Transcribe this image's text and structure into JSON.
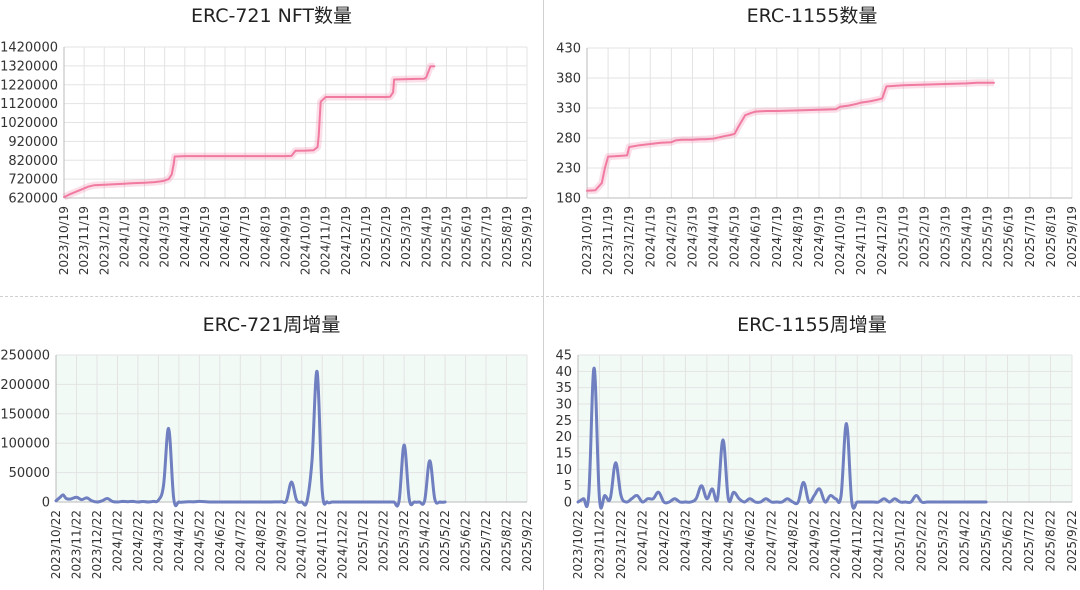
{
  "chart_data": [
    {
      "id": "c1",
      "type": "line",
      "title": "ERC-721 NFT数量",
      "y_ticks": [
        "1420000",
        "1320000",
        "1220000",
        "1120000",
        "1020000",
        "920000",
        "820000",
        "720000",
        "620000"
      ],
      "ylim": [
        620000,
        1420000
      ],
      "x_ticks": [
        "2023/10/19",
        "2023/11/19",
        "2023/12/19",
        "2024/1/19",
        "2024/2/19",
        "2024/3/19",
        "2024/4/19",
        "2024/5/19",
        "2024/6/19",
        "2024/7/19",
        "2024/8/19",
        "2024/9/19",
        "2024/10/19",
        "2024/11/19",
        "2024/12/19",
        "2025/1/19",
        "2025/2/19",
        "2025/3/19",
        "2025/4/19",
        "2025/5/19",
        "2025/6/19",
        "2025/7/19",
        "2025/8/19",
        "2025/9/19"
      ],
      "color": "#f07aa0",
      "area": false,
      "background": "#ffffff",
      "grid": true,
      "series": [
        {
          "x": [
            0,
            0.3,
            0.8,
            1.2,
            1.5,
            2.0,
            2.5,
            3.0,
            3.5,
            4.0,
            4.5,
            4.8,
            5.0,
            5.2,
            5.35,
            5.45,
            5.5,
            6,
            7,
            8,
            9,
            10,
            11,
            11.3,
            11.5,
            12.0,
            12.4,
            12.6,
            12.65,
            12.75,
            13,
            14,
            15,
            16,
            16.2,
            16.35,
            16.4,
            17,
            17.5,
            17.9,
            18.0,
            18.2,
            18.4
          ],
          "y": [
            625000,
            640000,
            662000,
            680000,
            688000,
            690000,
            693000,
            696000,
            699000,
            701000,
            704000,
            708000,
            712000,
            720000,
            745000,
            800000,
            840000,
            842000,
            842000,
            842000,
            842000,
            842000,
            842000,
            843000,
            870000,
            871000,
            873000,
            890000,
            950000,
            1130000,
            1155000,
            1155000,
            1155000,
            1155000,
            1156000,
            1180000,
            1248000,
            1250000,
            1251000,
            1252000,
            1260000,
            1317000,
            1318000
          ]
        }
      ]
    },
    {
      "id": "c2",
      "type": "line",
      "title": "ERC-1155数量",
      "y_ticks": [
        "430",
        "380",
        "330",
        "280",
        "230",
        "180"
      ],
      "ylim": [
        180,
        430
      ],
      "x_ticks": [
        "2023/10/19",
        "2023/11/19",
        "2023/12/19",
        "2024/1/19",
        "2024/2/19",
        "2024/3/19",
        "2024/4/19",
        "2024/5/19",
        "2024/6/19",
        "2024/7/19",
        "2024/8/19",
        "2024/9/19",
        "2024/10/19",
        "2024/11/19",
        "2024/12/19",
        "2025/1/19",
        "2025/2/19",
        "2025/3/19",
        "2025/4/19",
        "2025/5/19",
        "2025/6/19",
        "2025/7/19",
        "2025/8/19",
        "2025/9/19"
      ],
      "color": "#f07aa0",
      "area": false,
      "background": "#ffffff",
      "grid": true,
      "series": [
        {
          "x": [
            0,
            0.4,
            0.7,
            0.85,
            1.0,
            1.5,
            1.9,
            2.0,
            2.5,
            3.0,
            3.5,
            4.0,
            4.2,
            4.5,
            5,
            5.4,
            5.6,
            6.0,
            6.5,
            6.8,
            7.0,
            7.2,
            7.5,
            7.8,
            8.0,
            8.5,
            9,
            10,
            11,
            11.8,
            12.0,
            12.4,
            12.8,
            13,
            13.4,
            13.8,
            14.0,
            14.2,
            15,
            16,
            17,
            18,
            18.5,
            19,
            19.3
          ],
          "y": [
            192,
            193,
            205,
            230,
            249,
            250,
            251,
            265,
            268,
            270,
            272,
            273,
            276,
            277,
            277,
            278,
            278,
            279,
            283,
            285,
            287,
            300,
            318,
            322,
            324,
            325,
            325,
            326,
            327,
            328,
            332,
            334,
            337,
            339,
            341,
            344,
            346,
            366,
            368,
            369,
            370,
            371,
            372,
            372,
            372
          ]
        }
      ]
    },
    {
      "id": "c3",
      "type": "line",
      "title": "ERC-721周增量",
      "y_ticks": [
        "250000",
        "200000",
        "150000",
        "100000",
        "50000",
        "0"
      ],
      "ylim": [
        0,
        250000
      ],
      "x_ticks": [
        "2023/10/22",
        "2023/11/22",
        "2023/12/22",
        "2024/1/22",
        "2024/2/22",
        "2024/3/22",
        "2024/4/22",
        "2024/5/22",
        "2024/6/22",
        "2024/7/22",
        "2024/8/22",
        "2024/9/22",
        "2024/10/22",
        "2024/11/22",
        "2024/12/22",
        "2025/1/22",
        "2025/2/22",
        "2025/3/22",
        "2025/4/22",
        "2025/5/22",
        "2025/6/22",
        "2025/7/22",
        "2025/8/22",
        "2025/9/22"
      ],
      "color": "#6f7fbf",
      "area": false,
      "background": "#f2faf6",
      "grid": true,
      "series": [
        {
          "x": [
            0,
            0.2,
            0.35,
            0.5,
            0.7,
            1.0,
            1.25,
            1.5,
            1.75,
            2.0,
            2.25,
            2.5,
            2.75,
            3.0,
            3.25,
            3.5,
            3.75,
            4.0,
            4.25,
            4.5,
            4.75,
            5.0,
            5.25,
            5.5,
            5.75,
            6.0,
            6.25,
            6.5,
            6.75,
            7.0,
            7.5,
            8,
            8.5,
            9,
            9.5,
            10,
            10.5,
            11,
            11.25,
            11.5,
            11.75,
            12.0,
            12.25,
            12.5,
            12.75,
            13.0,
            13.25,
            13.5,
            14,
            15,
            16,
            16.25,
            16.5,
            16.75,
            17.0,
            17.25,
            17.5,
            17.75,
            18.0,
            18.25,
            18.5,
            18.75,
            19.0
          ],
          "y": [
            2000,
            8000,
            12000,
            6000,
            5000,
            8000,
            4000,
            7000,
            2000,
            0,
            2000,
            6000,
            1000,
            0,
            1000,
            500,
            1000,
            0,
            800,
            0,
            1000,
            3000,
            28000,
            125000,
            5000,
            0,
            0,
            500,
            300,
            1000,
            0,
            0,
            0,
            0,
            0,
            0,
            0,
            500,
            2000,
            34000,
            3000,
            0,
            500,
            70000,
            222000,
            20000,
            0,
            0,
            0,
            0,
            0,
            0,
            0,
            1000,
            97000,
            4000,
            0,
            0,
            2000,
            70000,
            5000,
            0,
            0
          ]
        }
      ]
    },
    {
      "id": "c4",
      "type": "line",
      "title": "ERC-1155周增量",
      "y_ticks": [
        "45",
        "40",
        "35",
        "30",
        "25",
        "20",
        "15",
        "10",
        "5",
        "0"
      ],
      "ylim": [
        0,
        45
      ],
      "x_ticks": [
        "2023/10/22",
        "2023/11/22",
        "2023/12/22",
        "2024/1/22",
        "2024/2/22",
        "2024/3/22",
        "2024/4/22",
        "2024/5/22",
        "2024/6/22",
        "2024/7/22",
        "2024/8/22",
        "2024/9/22",
        "2024/10/22",
        "2024/11/22",
        "2024/12/22",
        "2025/1/22",
        "2025/2/22",
        "2025/3/22",
        "2025/4/22",
        "2025/5/22",
        "2025/6/22",
        "2025/7/22",
        "2025/8/22",
        "2025/9/22"
      ],
      "color": "#6f7fbf",
      "area": false,
      "background": "#f2faf6",
      "grid": true,
      "series": [
        {
          "x": [
            0,
            0.25,
            0.5,
            0.75,
            1.0,
            1.25,
            1.5,
            1.75,
            2.0,
            2.25,
            2.5,
            2.75,
            3.0,
            3.25,
            3.5,
            3.75,
            4.0,
            4.25,
            4.5,
            4.75,
            5.0,
            5.25,
            5.5,
            5.75,
            6.0,
            6.25,
            6.5,
            6.75,
            7.0,
            7.25,
            7.5,
            7.75,
            8.0,
            8.25,
            8.5,
            8.75,
            9.0,
            9.25,
            9.5,
            9.75,
            10.0,
            10.25,
            10.5,
            10.75,
            11.0,
            11.25,
            11.5,
            11.75,
            12.0,
            12.25,
            12.5,
            12.75,
            13.0,
            13.25,
            13.5,
            13.75,
            14.0,
            14.25,
            14.5,
            14.75,
            15.0,
            15.25,
            15.5,
            15.75,
            16.0,
            16.25,
            16.5,
            16.75,
            17.0,
            17.25,
            17.5,
            17.75,
            18.0,
            18.25,
            18.5,
            18.75,
            19.0
          ],
          "y": [
            0,
            1,
            2,
            41,
            1,
            2,
            1,
            12,
            2,
            0,
            1,
            2,
            0,
            1,
            1,
            3,
            0,
            0,
            1,
            0,
            0,
            0,
            1,
            5,
            1,
            4,
            1,
            19,
            1,
            3,
            1,
            0,
            1,
            0,
            0,
            1,
            0,
            0,
            0,
            1,
            0,
            0,
            6,
            0,
            2,
            4,
            0,
            2,
            1,
            2,
            24,
            0,
            0,
            0,
            0,
            0,
            0,
            1,
            0,
            1,
            0,
            0,
            0,
            2,
            0,
            0,
            0,
            0,
            0,
            0,
            0,
            0,
            0,
            0,
            0,
            0,
            0
          ]
        }
      ]
    }
  ]
}
